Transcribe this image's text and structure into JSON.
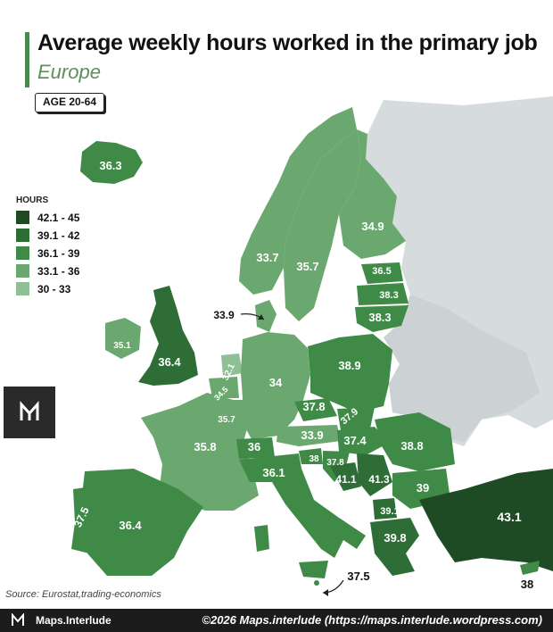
{
  "header": {
    "title": "Average weekly hours worked in the primary job",
    "subtitle": "Europe",
    "age_badge": "AGE 20-64"
  },
  "legend": {
    "title": "HOURS",
    "items": [
      {
        "label": "42.1 - 45",
        "color": "#1e4a24"
      },
      {
        "label": "39.1 - 42",
        "color": "#2e6e36"
      },
      {
        "label": "36.1 - 39",
        "color": "#3e8a46"
      },
      {
        "label": "33.1 - 36",
        "color": "#6aa86f"
      },
      {
        "label": "30 - 33",
        "color": "#8fc095"
      }
    ]
  },
  "map": {
    "countries": [
      {
        "name": "Iceland",
        "value": "36.3"
      },
      {
        "name": "Norway",
        "value": "33.7"
      },
      {
        "name": "Sweden",
        "value": "35.7"
      },
      {
        "name": "Finland",
        "value": "34.9"
      },
      {
        "name": "Estonia",
        "value": "36.5"
      },
      {
        "name": "Latvia",
        "value": "38.3"
      },
      {
        "name": "Lithuania",
        "value": "38.3"
      },
      {
        "name": "Denmark",
        "value": "33.9"
      },
      {
        "name": "Ireland",
        "value": "35.1"
      },
      {
        "name": "United Kingdom",
        "value": "36.4"
      },
      {
        "name": "Netherlands",
        "value": "32.1"
      },
      {
        "name": "Belgium",
        "value": "34.5"
      },
      {
        "name": "Luxembourg",
        "value": "35.7"
      },
      {
        "name": "Germany",
        "value": "34"
      },
      {
        "name": "Poland",
        "value": "38.9"
      },
      {
        "name": "Czechia",
        "value": "37.8"
      },
      {
        "name": "Slovakia",
        "value": "37.9"
      },
      {
        "name": "France",
        "value": "35.8"
      },
      {
        "name": "Switzerland",
        "value": "36"
      },
      {
        "name": "Austria",
        "value": "33.9"
      },
      {
        "name": "Hungary",
        "value": "37.4"
      },
      {
        "name": "Romania",
        "value": "38.8"
      },
      {
        "name": "Slovenia",
        "value": "38"
      },
      {
        "name": "Croatia",
        "value": "37.8"
      },
      {
        "name": "Bosnia and Herzegovina",
        "value": "41.1"
      },
      {
        "name": "Serbia",
        "value": "41.3"
      },
      {
        "name": "Bulgaria",
        "value": "39"
      },
      {
        "name": "North Macedonia",
        "value": "39.1"
      },
      {
        "name": "Greece",
        "value": "39.8"
      },
      {
        "name": "Italy",
        "value": "36.1"
      },
      {
        "name": "Portugal",
        "value": "37.5"
      },
      {
        "name": "Spain",
        "value": "36.4"
      },
      {
        "name": "Turkey",
        "value": "43.1"
      },
      {
        "name": "Malta",
        "value": "37.5"
      },
      {
        "name": "Cyprus",
        "value": "38"
      }
    ]
  },
  "source": "Source: Eurostat,trading-economics",
  "footer": {
    "brand": "Maps.Interlude",
    "copyright": "©2026 Maps.interlude (https://maps.interlude.wordpress.com)"
  },
  "colors": {
    "non_data": "#d6dbdd",
    "accent": "#4a8a4f"
  }
}
